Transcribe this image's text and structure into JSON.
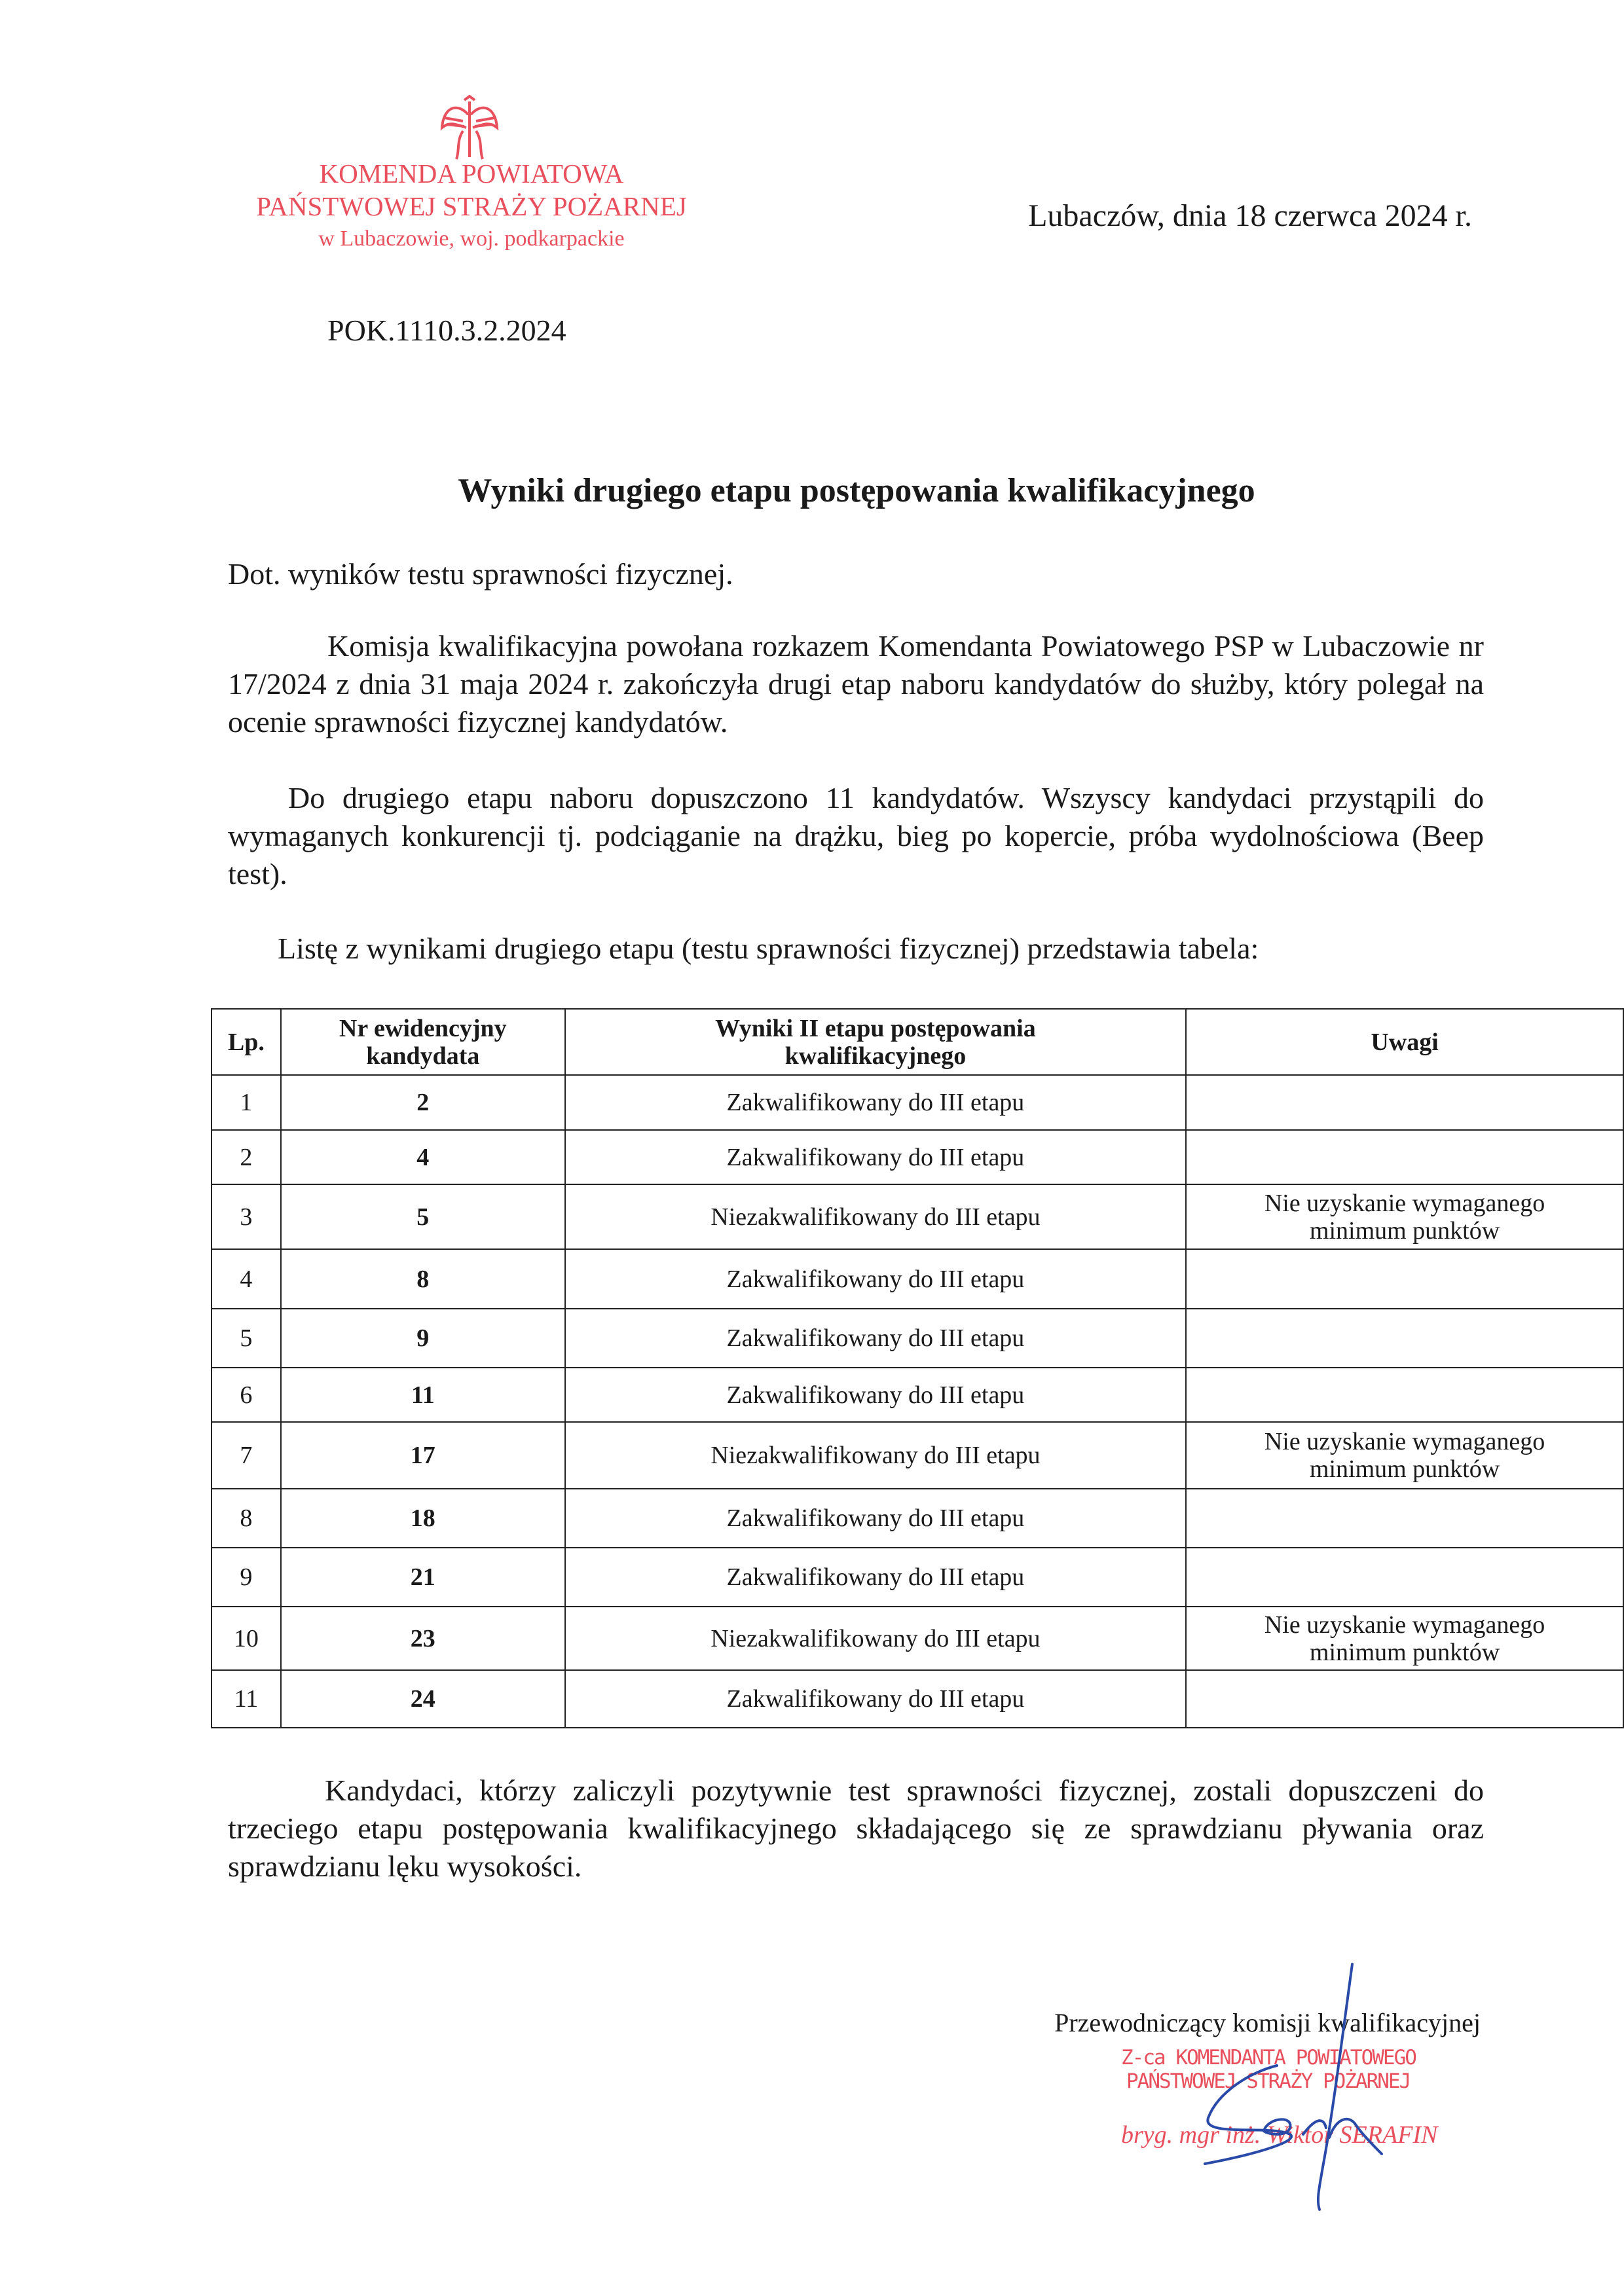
{
  "header_stamp": {
    "emblem": "polish-eagle-emblem",
    "line1": "KOMENDA POWIATOWA",
    "line2": "PAŃSTWOWEJ STRAŻY POŻARNEJ",
    "line3": "w Lubaczowie, woj. podkarpackie",
    "color": "#e8505e"
  },
  "date": "Lubaczów, dnia 18 czerwca 2024 r.",
  "reference": "POK.1110.3.2.2024",
  "title": "Wyniki drugiego etapu postępowania kwalifikacyjnego",
  "subject": "Dot. wyników testu sprawności fizycznej.",
  "paragraphs": [
    "Komisja kwalifikacyjna powołana rozkazem Komendanta Powiatowego PSP w Lubaczowie nr 17/2024 z dnia 31 maja 2024 r. zakończyła drugi etap naboru kandydatów do służby, który polegał na ocenie sprawności fizycznej kandydatów.",
    "Do drugiego etapu naboru dopuszczono 11 kandydatów. Wszyscy kandydaci przystąpili do wymaganych konkurencji tj. podciąganie na drążku, bieg po kopercie, próba wydolnościowa (Beep test).",
    "Listę z wynikami drugiego etapu (testu sprawności fizycznej) przedstawia tabela:",
    "Kandydaci, którzy zaliczyli pozytywnie test sprawności fizycznej, zostali dopuszczeni do trzeciego etapu postępowania kwalifikacyjnego składającego się ze sprawdzianu pływania oraz sprawdzianu lęku wysokości."
  ],
  "table": {
    "headers": [
      "Lp.",
      "Nr ewidencyjny kandydata",
      "Wyniki II etapu postępowania kwalifikacyjnego",
      "Uwagi"
    ],
    "rows": [
      [
        "1",
        "2",
        "Zakwalifikowany do III etapu",
        ""
      ],
      [
        "2",
        "4",
        "Zakwalifikowany do III etapu",
        ""
      ],
      [
        "3",
        "5",
        "Niezakwalifikowany do III etapu",
        "Nie uzyskanie wymaganego minimum punktów"
      ],
      [
        "4",
        "8",
        "Zakwalifikowany do III etapu",
        ""
      ],
      [
        "5",
        "9",
        "Zakwalifikowany do III etapu",
        ""
      ],
      [
        "6",
        "11",
        "Zakwalifikowany do III etapu",
        ""
      ],
      [
        "7",
        "17",
        "Niezakwalifikowany do III etapu",
        "Nie uzyskanie wymaganego minimum punktów"
      ],
      [
        "8",
        "18",
        "Zakwalifikowany do III etapu",
        ""
      ],
      [
        "9",
        "21",
        "Zakwalifikowany do III etapu",
        ""
      ],
      [
        "10",
        "23",
        "Niezakwalifikowany do III etapu",
        "Nie uzyskanie wymaganego minimum punktów"
      ],
      [
        "11",
        "24",
        "Zakwalifikowany do III etapu",
        ""
      ]
    ]
  },
  "signature": {
    "title": "Przewodniczący komisji kwalifikacyjnej",
    "stamp_line1": "Z-ca KOMENDANTA POWIATOWEGO",
    "stamp_line2": "PAŃSTWOWEJ STRAŻY POŻARNEJ",
    "stamp_line3": "bryg. mgr inż. Wiktor SERAFIN",
    "ink_color": "#2a4aa8"
  }
}
